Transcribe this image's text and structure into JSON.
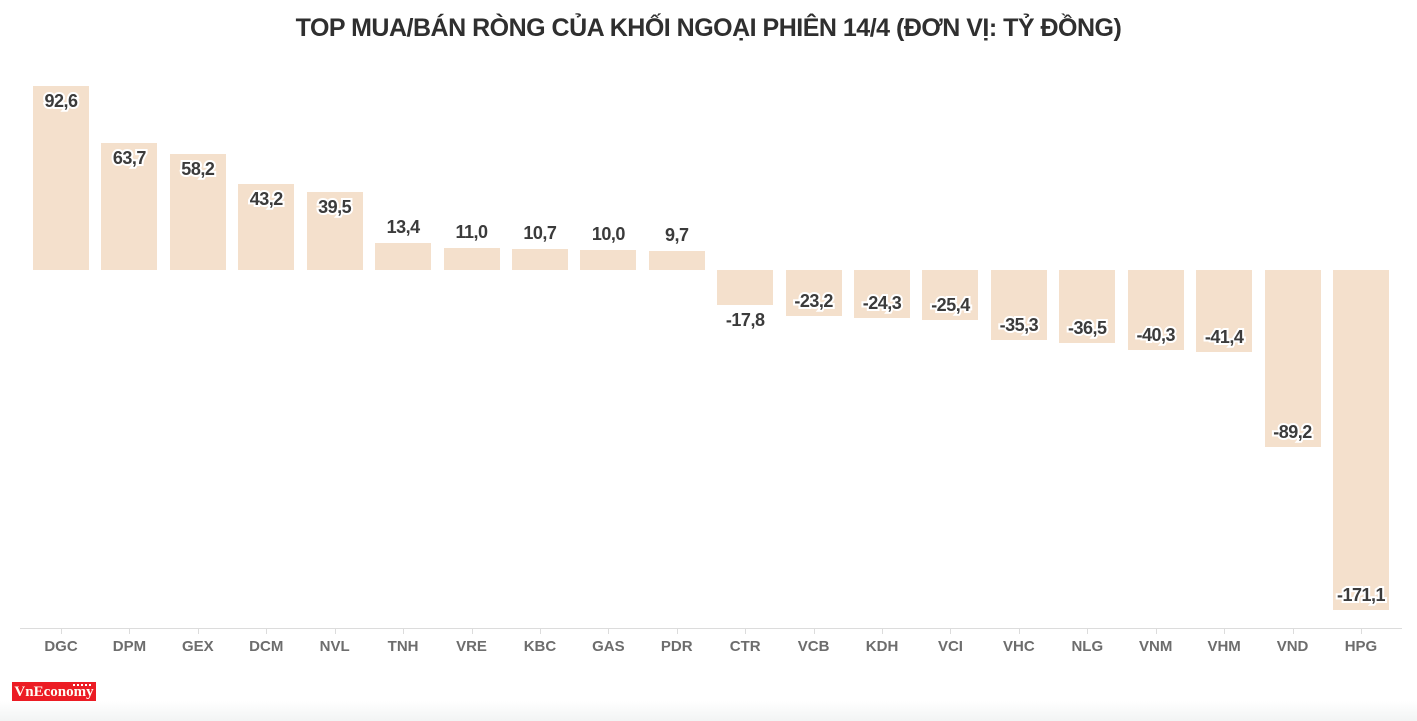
{
  "chart_data": {
    "type": "bar",
    "title": "TOP MUA/BÁN RÒNG CỦA KHỐI NGOẠI PHIÊN 14/4 (ĐƠN VỊ: TỶ ĐỒNG)",
    "unit": "tỷ đồng",
    "categories": [
      "DGC",
      "DPM",
      "GEX",
      "DCM",
      "NVL",
      "TNH",
      "VRE",
      "KBC",
      "GAS",
      "PDR",
      "CTR",
      "VCB",
      "KDH",
      "VCI",
      "VHC",
      "NLG",
      "VNM",
      "VHM",
      "VND",
      "HPG"
    ],
    "values": [
      92.6,
      63.7,
      58.2,
      43.2,
      39.5,
      13.4,
      11.0,
      10.7,
      10.0,
      9.7,
      -17.8,
      -23.2,
      -24.3,
      -25.4,
      -35.3,
      -36.5,
      -40.3,
      -41.4,
      -89.2,
      -171.1
    ],
    "value_labels": [
      "92,6",
      "63,7",
      "58,2",
      "43,2",
      "39,5",
      "13,4",
      "11,0",
      "10,7",
      "10,0",
      "9,7",
      "-17,8",
      "-23,2",
      "-24,3",
      "-25,4",
      "-35,3",
      "-36,5",
      "-40,3",
      "-41,4",
      "-89,2",
      "-171,1"
    ],
    "xlabel": "",
    "ylabel": "",
    "ylim": [
      -180,
      100
    ],
    "grid": false,
    "legend": false,
    "bar_color": "#f4e0cc",
    "value_label_color": "#3b3b3b",
    "axis_label_color": "#6d6d6d",
    "axis_line_color": "#dcdcdc"
  },
  "logo": {
    "text": "VnEconomy",
    "tagline": "NHỊP SỐNG KINH TẾ VIỆT NAM & THẾ GIỚI",
    "bg_color": "#ec1c24",
    "text_color": "#fffdf5"
  }
}
